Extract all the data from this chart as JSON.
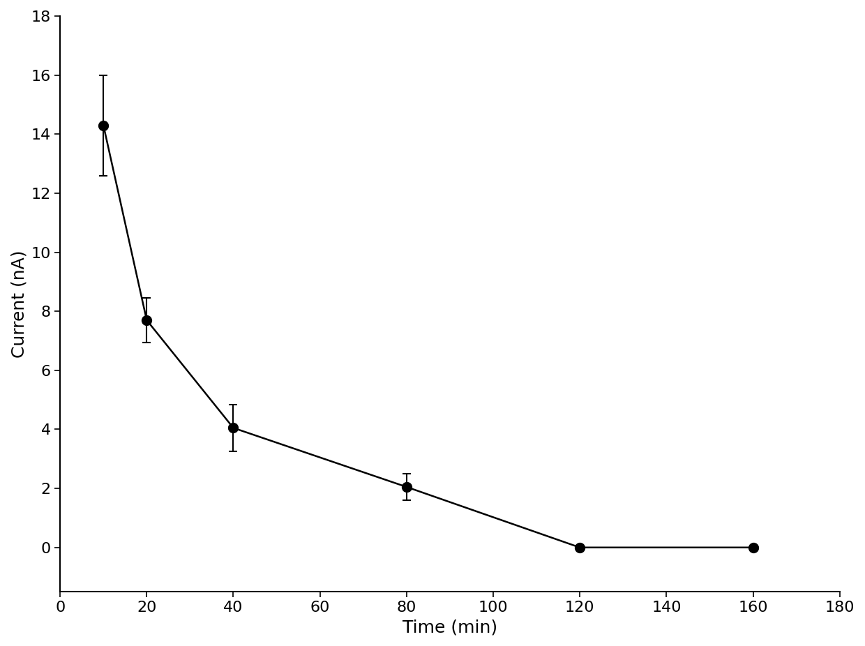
{
  "x": [
    10,
    20,
    40,
    80,
    120,
    160
  ],
  "y": [
    14.3,
    7.7,
    4.05,
    2.05,
    0.0,
    0.0
  ],
  "yerr": [
    1.7,
    0.75,
    0.8,
    0.45,
    0.0,
    0.0
  ],
  "xlabel": "Time (min)",
  "ylabel": "Current (nA)",
  "xlim": [
    0,
    180
  ],
  "ylim": [
    -1.5,
    18
  ],
  "xticks": [
    0,
    20,
    40,
    60,
    80,
    100,
    120,
    140,
    160,
    180
  ],
  "yticks": [
    0,
    2,
    4,
    6,
    8,
    10,
    12,
    14,
    16,
    18
  ],
  "line_color": "#000000",
  "marker_color": "#000000",
  "marker_size": 10,
  "line_width": 1.8,
  "elinewidth": 1.5,
  "capsize": 4,
  "background_color": "#ffffff",
  "xlabel_fontsize": 18,
  "ylabel_fontsize": 18,
  "tick_fontsize": 16
}
